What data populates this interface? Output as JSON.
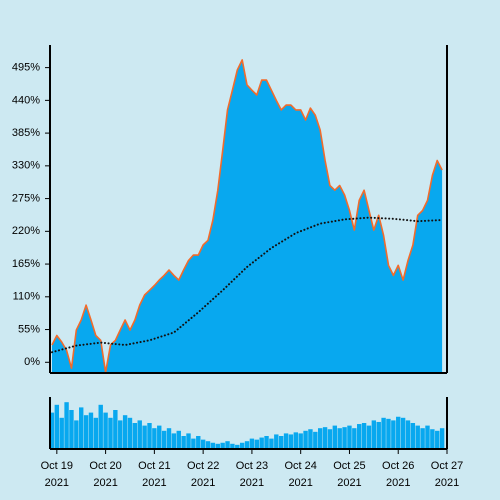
{
  "chart_data": [
    {
      "type": "area",
      "xlim": [
        18.86,
        27.0
      ],
      "ylim": [
        -18,
        533
      ],
      "yticks": [
        {
          "value": 0,
          "label": "0%"
        },
        {
          "value": 55,
          "label": "55%"
        },
        {
          "value": 110,
          "label": "110%"
        },
        {
          "value": 165,
          "label": "165%"
        },
        {
          "value": 220,
          "label": "220%"
        },
        {
          "value": 275,
          "label": "275%"
        },
        {
          "value": 330,
          "label": "330%"
        },
        {
          "value": 385,
          "label": "385%"
        },
        {
          "value": 440,
          "label": "440%"
        },
        {
          "value": 495,
          "label": "495%"
        }
      ],
      "xticks": [
        {
          "value": 19,
          "label": [
            "Oct 19",
            "2021"
          ]
        },
        {
          "value": 20,
          "label": [
            "Oct 20",
            "2021"
          ]
        },
        {
          "value": 21,
          "label": [
            "Oct 21",
            "2021"
          ]
        },
        {
          "value": 22,
          "label": [
            "Oct 22",
            "2021"
          ]
        },
        {
          "value": 23,
          "label": [
            "Oct 23",
            "2021"
          ]
        },
        {
          "value": 24,
          "label": [
            "Oct 24",
            "2021"
          ]
        },
        {
          "value": 25,
          "label": [
            "Oct 25",
            "2021"
          ]
        },
        {
          "value": 26,
          "label": [
            "Oct 26",
            "2021"
          ]
        },
        {
          "value": 27,
          "label": [
            "Oct 27",
            "2021"
          ]
        }
      ],
      "series": [
        {
          "color": "#f26b2b",
          "fill": "#08a8ef",
          "x": [
            18.9,
            19.0,
            19.1,
            19.2,
            19.3,
            19.4,
            19.5,
            19.6,
            19.7,
            19.8,
            19.9,
            20.0,
            20.1,
            20.2,
            20.3,
            20.4,
            20.5,
            20.6,
            20.7,
            20.8,
            20.9,
            21.0,
            21.1,
            21.2,
            21.3,
            21.4,
            21.5,
            21.6,
            21.7,
            21.8,
            21.9,
            22.0,
            22.1,
            22.2,
            22.3,
            22.4,
            22.5,
            22.6,
            22.7,
            22.8,
            22.9,
            23.0,
            23.1,
            23.2,
            23.3,
            23.4,
            23.5,
            23.6,
            23.7,
            23.8,
            23.9,
            24.0,
            24.1,
            24.2,
            24.3,
            24.4,
            24.5,
            24.6,
            24.7,
            24.8,
            24.9,
            25.0,
            25.1,
            25.2,
            25.3,
            25.4,
            25.5,
            25.6,
            25.7,
            25.8,
            25.9,
            26.0,
            26.1,
            26.2,
            26.3,
            26.4,
            26.5,
            26.6,
            26.7,
            26.8,
            26.9
          ],
          "values": [
            29,
            45,
            34,
            20,
            -10,
            54,
            71,
            96,
            71,
            45,
            37,
            -17,
            29,
            37,
            54,
            71,
            54,
            71,
            96,
            113,
            121,
            129,
            138,
            146,
            155,
            146,
            138,
            155,
            171,
            180,
            180,
            197,
            205,
            239,
            289,
            356,
            424,
            457,
            491,
            508,
            466,
            457,
            449,
            474,
            474,
            457,
            440,
            424,
            432,
            432,
            424,
            424,
            407,
            427,
            415,
            390,
            339,
            297,
            289,
            297,
            281,
            255,
            222,
            272,
            289,
            255,
            222,
            247,
            213,
            163,
            146,
            163,
            138,
            171,
            197,
            247,
            255,
            272,
            314,
            339,
            323
          ]
        },
        {
          "color": "#111111",
          "style": "dotted",
          "x": [
            18.9,
            19.4,
            19.9,
            20.4,
            20.9,
            21.4,
            21.9,
            22.4,
            22.9,
            23.4,
            23.9,
            24.4,
            24.9,
            25.4,
            25.9,
            26.4,
            26.9
          ],
          "values": [
            17,
            28,
            33,
            29,
            37,
            50,
            84,
            121,
            160,
            192,
            217,
            233,
            240,
            243,
            241,
            237,
            239
          ]
        }
      ]
    },
    {
      "type": "bar",
      "color": "#08a8ef",
      "xlim": [
        18.86,
        27.0
      ],
      "ylim": [
        0,
        100
      ],
      "x": [
        18.9,
        19.0,
        19.1,
        19.2,
        19.3,
        19.4,
        19.5,
        19.6,
        19.7,
        19.8,
        19.9,
        20.0,
        20.1,
        20.2,
        20.3,
        20.4,
        20.5,
        20.6,
        20.7,
        20.8,
        20.9,
        21.0,
        21.1,
        21.2,
        21.3,
        21.4,
        21.5,
        21.6,
        21.7,
        21.8,
        21.9,
        22.0,
        22.1,
        22.2,
        22.3,
        22.4,
        22.5,
        22.6,
        22.7,
        22.8,
        22.9,
        23.0,
        23.1,
        23.2,
        23.3,
        23.4,
        23.5,
        23.6,
        23.7,
        23.8,
        23.9,
        24.0,
        24.1,
        24.2,
        24.3,
        24.4,
        24.5,
        24.6,
        24.7,
        24.8,
        24.9,
        25.0,
        25.1,
        25.2,
        25.3,
        25.4,
        25.5,
        25.6,
        25.7,
        25.8,
        25.9,
        26.0,
        26.1,
        26.2,
        26.3,
        26.4,
        26.5,
        26.6,
        26.7,
        26.8,
        26.9
      ],
      "values": [
        70,
        85,
        60,
        90,
        75,
        55,
        80,
        65,
        70,
        60,
        85,
        70,
        60,
        75,
        55,
        65,
        60,
        50,
        55,
        45,
        50,
        40,
        45,
        35,
        40,
        30,
        35,
        25,
        30,
        20,
        25,
        18,
        15,
        12,
        10,
        12,
        15,
        10,
        8,
        12,
        15,
        20,
        18,
        22,
        25,
        20,
        28,
        25,
        30,
        28,
        32,
        30,
        35,
        38,
        33,
        40,
        42,
        38,
        45,
        40,
        42,
        45,
        40,
        48,
        50,
        45,
        55,
        52,
        60,
        58,
        55,
        62,
        60,
        55,
        50,
        45,
        40,
        45,
        38,
        35,
        40
      ]
    }
  ]
}
